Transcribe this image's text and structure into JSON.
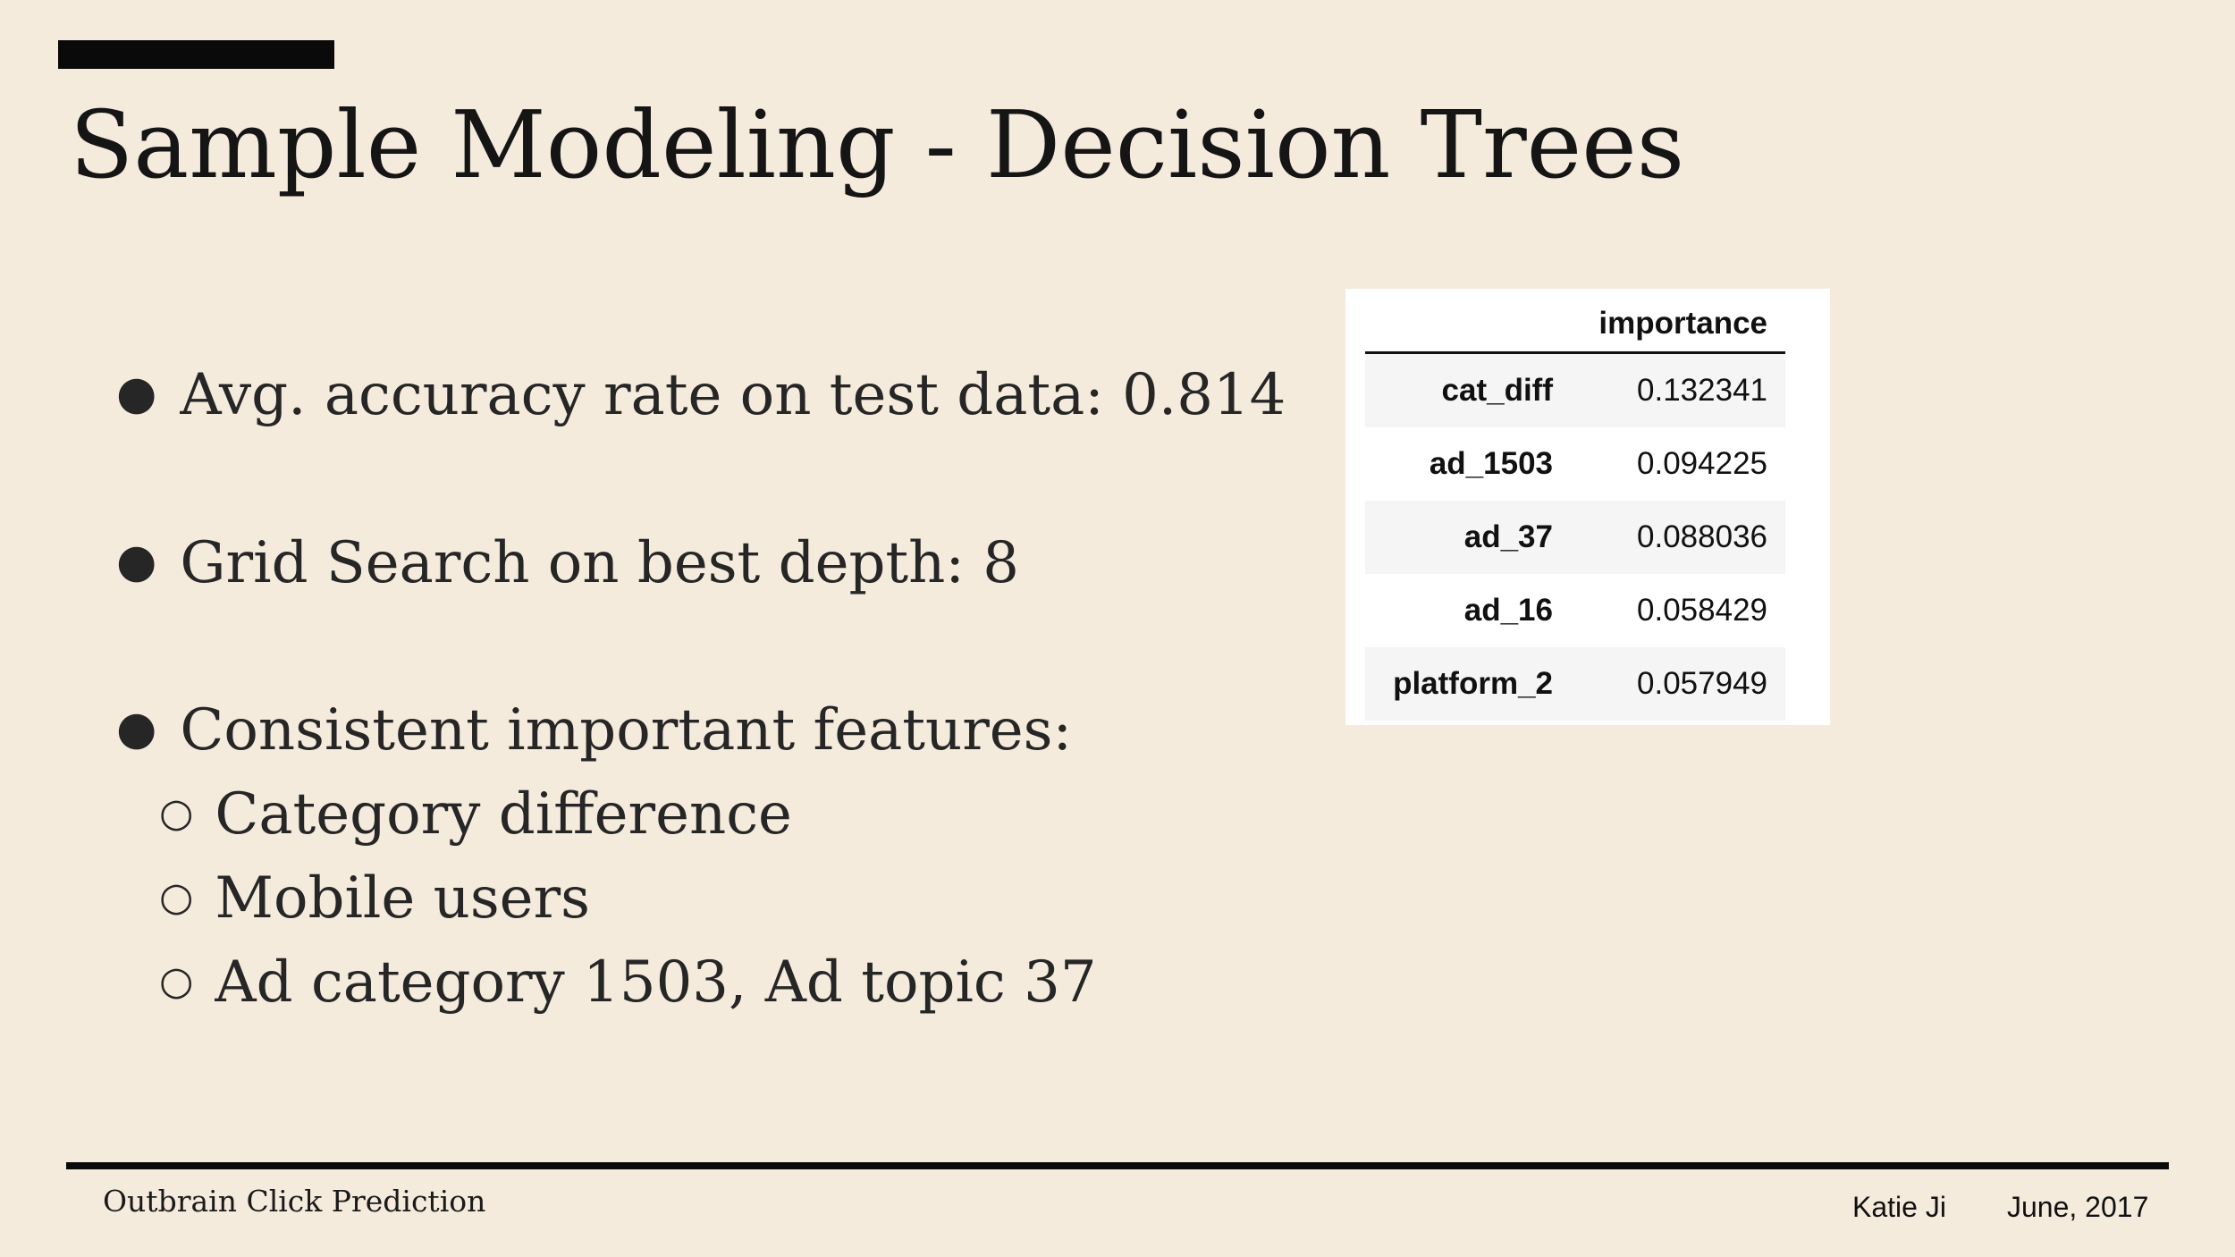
{
  "title": "Sample Modeling - Decision Trees",
  "bullets": {
    "accuracy": "Avg. accuracy rate on test data: 0.814",
    "depth": "Grid Search on best depth: 8",
    "features": "Consistent important features:",
    "sub": [
      "Category difference",
      "Mobile users",
      "Ad category 1503, Ad topic 37"
    ]
  },
  "table": {
    "header": "importance",
    "rows": [
      {
        "feature": "cat_diff",
        "importance": "0.132341"
      },
      {
        "feature": "ad_1503",
        "importance": "0.094225"
      },
      {
        "feature": "ad_37",
        "importance": "0.088036"
      },
      {
        "feature": "ad_16",
        "importance": "0.058429"
      },
      {
        "feature": "platform_2",
        "importance": "0.057949"
      }
    ]
  },
  "footer": {
    "project": "Outbrain Click Prediction",
    "author": "Katie Ji",
    "date": "June, 2017"
  }
}
